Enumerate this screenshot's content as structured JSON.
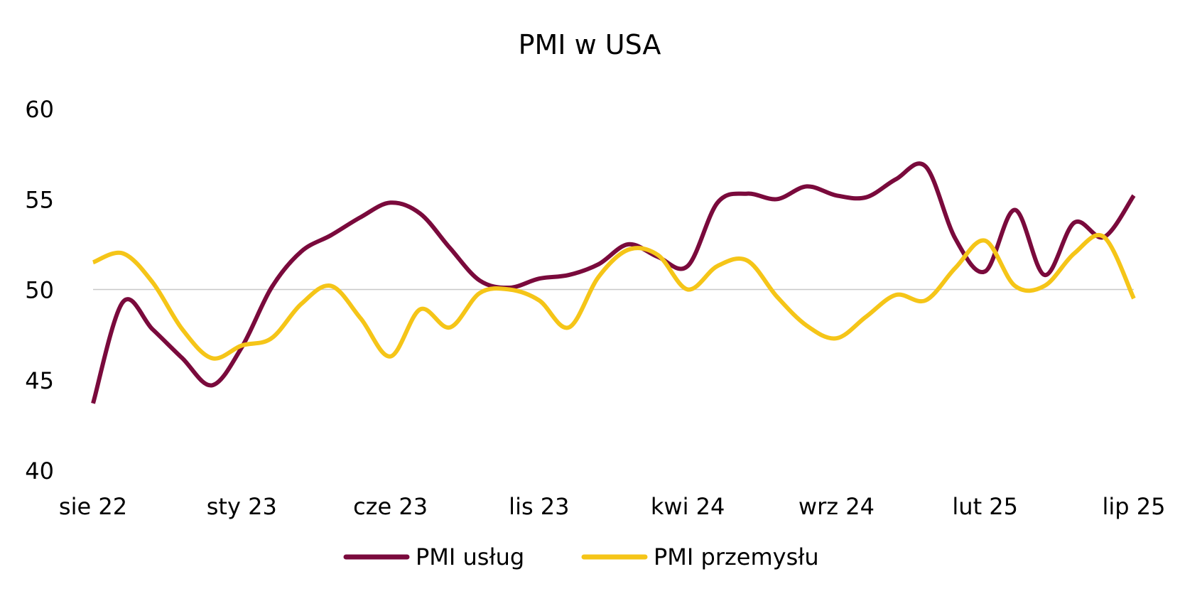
{
  "chart_data": {
    "type": "line",
    "title": "PMI w USA",
    "xlabel": "",
    "ylabel": "",
    "ylim": [
      40,
      60
    ],
    "yticks": [
      "40",
      "45",
      "50",
      "55",
      "60"
    ],
    "x_tick_labels": [
      "sie 22",
      "sty 23",
      "cze 23",
      "lis 23",
      "kwi 24",
      "wrz 24",
      "lut 25",
      "lip 25"
    ],
    "x": [
      "sie 22",
      "wrz 22",
      "paź 22",
      "lis 22",
      "gru 22",
      "sty 23",
      "lut 23",
      "mar 23",
      "kwi 23",
      "maj 23",
      "cze 23",
      "lip 23",
      "sie 23",
      "wrz 23",
      "paź 23",
      "lis 23",
      "gru 23",
      "sty 24",
      "lut 24",
      "mar 24",
      "kwi 24",
      "maj 24",
      "cze 24",
      "lip 24",
      "sie 24",
      "wrz 24",
      "paź 24",
      "lis 24",
      "gru 24",
      "sty 25",
      "lut 25",
      "mar 25",
      "kwi 25",
      "maj 25",
      "cze 25",
      "lip 25"
    ],
    "reference_line": 50,
    "grid": false,
    "legend_position": "bottom",
    "series": [
      {
        "name": "PMI usług",
        "color": "#7a0a3c",
        "values": [
          43.7,
          49.3,
          47.8,
          46.2,
          44.7,
          46.8,
          50.1,
          52.1,
          53.0,
          54.0,
          54.8,
          54.2,
          52.3,
          50.5,
          50.1,
          50.6,
          50.8,
          51.4,
          52.5,
          51.8,
          51.3,
          54.8,
          55.3,
          55.0,
          55.7,
          55.2,
          55.1,
          56.1,
          56.8,
          52.8,
          51.0,
          54.4,
          50.8,
          53.7,
          52.9,
          55.2
        ]
      },
      {
        "name": "PMI przemysłu",
        "color": "#f5c518",
        "values": [
          51.5,
          52.0,
          50.4,
          47.8,
          46.2,
          46.9,
          47.3,
          49.2,
          50.2,
          48.4,
          46.3,
          48.9,
          47.9,
          49.8,
          50.0,
          49.4,
          47.9,
          50.7,
          52.2,
          51.9,
          50.0,
          51.3,
          51.6,
          49.6,
          48.0,
          47.3,
          48.5,
          49.7,
          49.4,
          51.2,
          52.7,
          50.2,
          50.2,
          52.0,
          52.9,
          49.5
        ]
      }
    ]
  }
}
